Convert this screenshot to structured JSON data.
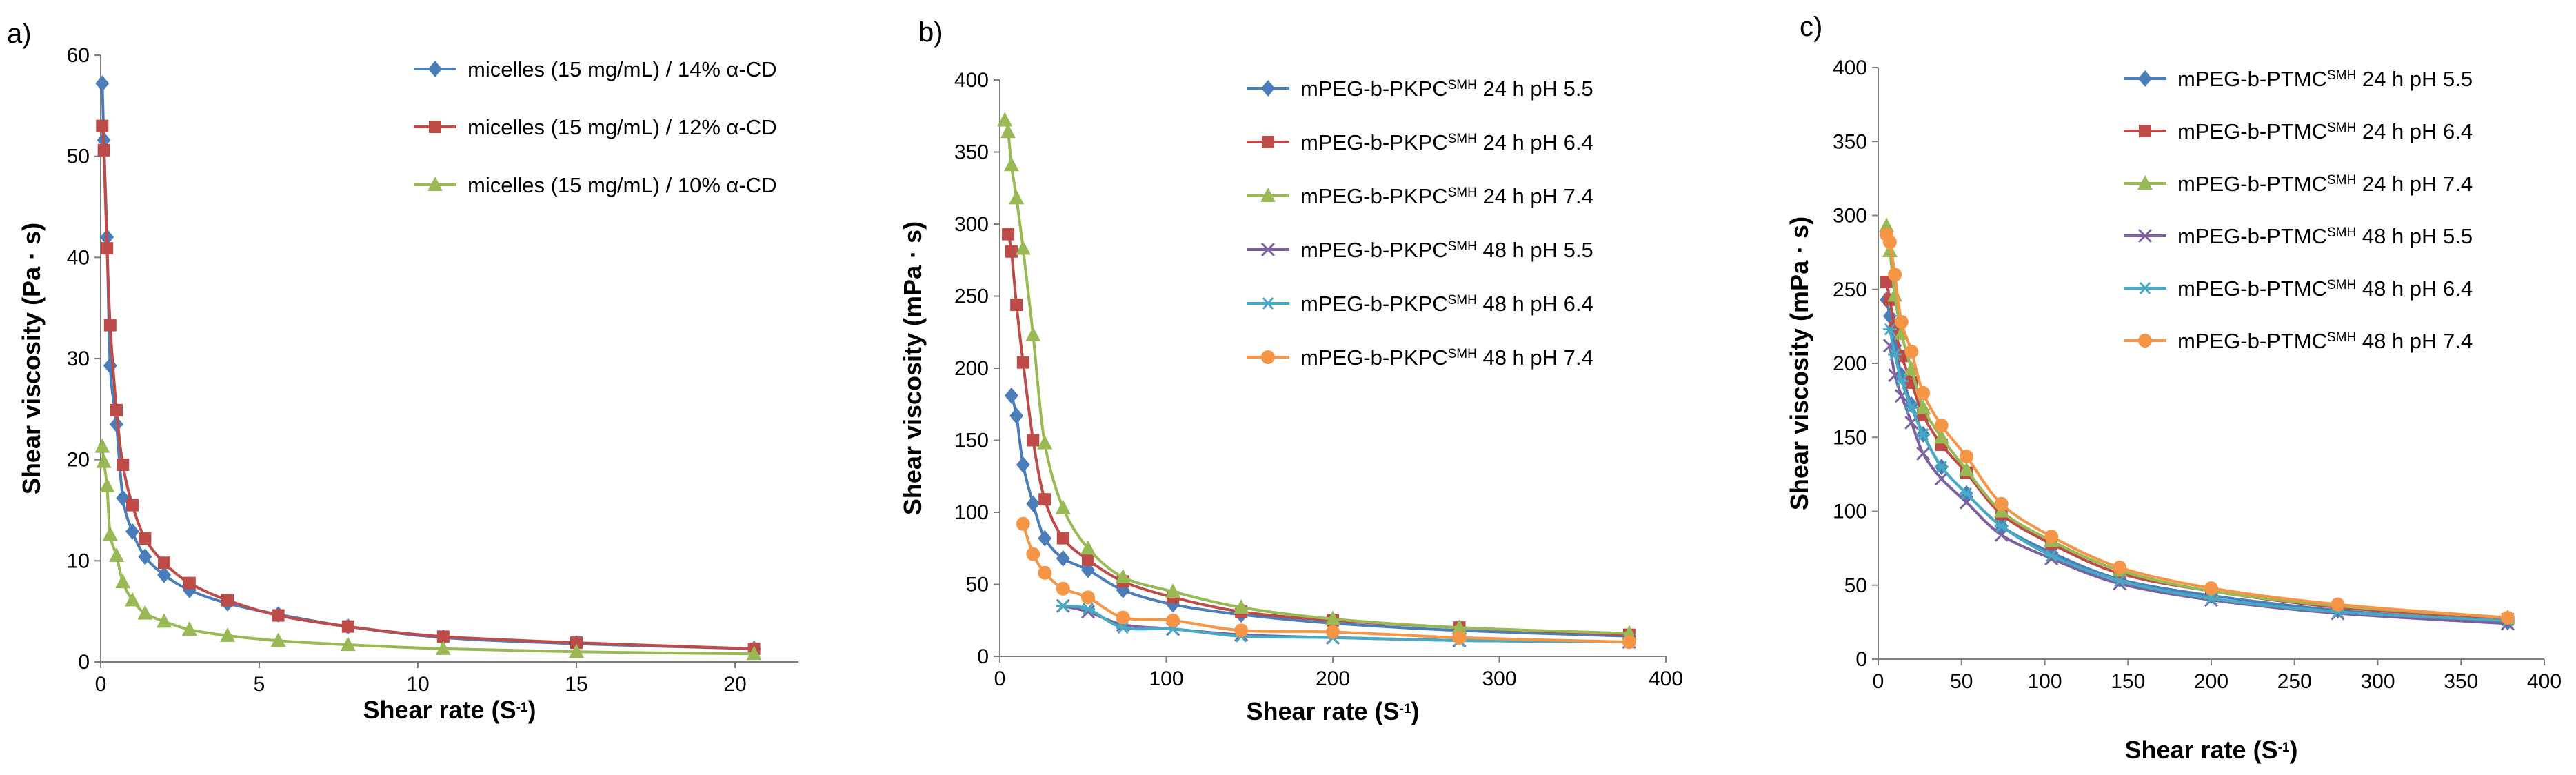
{
  "chart_data": [
    {
      "panel_label": "a)",
      "type": "line",
      "xlabel_main": "Shear rate (S",
      "xlabel_sup": "-1",
      "xlabel_end": ")",
      "ylabel": "Shear viscosity (Pa · s)",
      "xlim": [
        0,
        22
      ],
      "ylim": [
        0,
        60
      ],
      "xticks": [
        0,
        5,
        10,
        15,
        20
      ],
      "yticks": [
        0,
        10,
        20,
        30,
        40,
        50,
        60
      ],
      "legend_position": "top-right",
      "series": [
        {
          "name": "micelles (15 mg/mL) / 14% α-CD",
          "color": "#4a7ebb",
          "marker": "diamond",
          "x": [
            0.05,
            0.1,
            0.2,
            0.3,
            0.5,
            0.7,
            1.0,
            1.4,
            2.0,
            2.8,
            4.0,
            5.6,
            7.8,
            10.8,
            15.0,
            20.6
          ],
          "y": [
            57.2,
            51.6,
            42.0,
            29.3,
            23.5,
            16.2,
            12.9,
            10.4,
            8.6,
            7.1,
            5.8,
            4.7,
            3.5,
            2.4,
            1.8,
            1.3
          ]
        },
        {
          "name": "micelles (15 mg/mL) / 12% α-CD",
          "color": "#be4b48",
          "marker": "square",
          "x": [
            0.05,
            0.1,
            0.2,
            0.3,
            0.5,
            0.7,
            1.0,
            1.4,
            2.0,
            2.8,
            4.0,
            5.6,
            7.8,
            10.8,
            15.0,
            20.6
          ],
          "y": [
            53.0,
            50.6,
            40.9,
            33.3,
            24.9,
            19.5,
            15.5,
            12.2,
            9.8,
            7.8,
            6.1,
            4.6,
            3.5,
            2.5,
            1.9,
            1.3
          ]
        },
        {
          "name": "micelles (15 mg/mL) / 10% α-CD",
          "color": "#98b954",
          "marker": "triangle",
          "x": [
            0.05,
            0.1,
            0.2,
            0.3,
            0.5,
            0.7,
            1.0,
            1.4,
            2.0,
            2.8,
            4.0,
            5.6,
            7.8,
            10.8,
            15.0,
            20.6
          ],
          "y": [
            21.3,
            19.8,
            17.4,
            12.6,
            10.5,
            7.9,
            6.1,
            4.8,
            4.0,
            3.2,
            2.6,
            2.1,
            1.7,
            1.3,
            1.0,
            0.8
          ]
        }
      ]
    },
    {
      "panel_label": "b)",
      "type": "line",
      "xlabel_main": "Shear rate (S",
      "xlabel_sup": "-1",
      "xlabel_end": ")",
      "ylabel": "Shear viscosity (mPa · s)",
      "xlim": [
        0,
        400
      ],
      "ylim": [
        0,
        400
      ],
      "xticks": [
        0,
        100,
        200,
        300,
        400
      ],
      "yticks": [
        0,
        50,
        100,
        150,
        200,
        250,
        300,
        350,
        400
      ],
      "legend_position": "top-right",
      "series": [
        {
          "name_main": "mPEG-b-PKPC",
          "name_sup": "SMH",
          "name_end": " 24 h pH 5.5",
          "color": "#4a7ebb",
          "marker": "diamond",
          "x": [
            7,
            10,
            14,
            20,
            27,
            38,
            53,
            74,
            104,
            145,
            200,
            276,
            378
          ],
          "y": [
            181,
            167,
            133,
            106,
            82,
            68,
            60,
            46,
            36,
            29,
            23,
            18,
            14
          ]
        },
        {
          "name_main": "mPEG-b-PKPC",
          "name_sup": "SMH",
          "name_end": " 24 h pH 6.4",
          "color": "#be4b48",
          "marker": "square",
          "x": [
            5,
            7,
            10,
            14,
            20,
            27,
            38,
            53,
            74,
            104,
            145,
            200,
            276,
            378
          ],
          "y": [
            293,
            281,
            244,
            204,
            150,
            109,
            82,
            67,
            52,
            41,
            31,
            25,
            20,
            15
          ]
        },
        {
          "name_main": "mPEG-b-PKPC",
          "name_sup": "SMH",
          "name_end": " 24 h pH 7.4",
          "color": "#98b954",
          "marker": "triangle",
          "x": [
            3,
            5,
            7,
            10,
            14,
            20,
            27,
            38,
            53,
            74,
            104,
            145,
            200,
            276,
            378
          ],
          "y": [
            372,
            364,
            341,
            318,
            283,
            223,
            148,
            103,
            75,
            55,
            45,
            34,
            26,
            20,
            16
          ]
        },
        {
          "name_main": "mPEG-b-PKPC",
          "name_sup": "SMH",
          "name_end": " 48 h pH 5.5",
          "color": "#7d60a0",
          "marker": "x",
          "x": [
            38,
            53,
            74,
            104,
            145,
            200,
            276,
            378
          ],
          "y": [
            35,
            31,
            22,
            19,
            15,
            13,
            11,
            10
          ]
        },
        {
          "name_main": "mPEG-b-PKPC",
          "name_sup": "SMH",
          "name_end": " 48 h pH 6.4",
          "color": "#46aac5",
          "marker": "star",
          "x": [
            38,
            53,
            74,
            104,
            145,
            200,
            276,
            378
          ],
          "y": [
            35,
            33,
            20,
            19,
            14,
            13,
            11,
            10
          ]
        },
        {
          "name_main": "mPEG-b-PKPC",
          "name_sup": "SMH",
          "name_end": " 48 h pH 7.4",
          "color": "#f69546",
          "marker": "circle",
          "x": [
            14,
            20,
            27,
            38,
            53,
            74,
            104,
            145,
            200,
            276,
            378
          ],
          "y": [
            92,
            71,
            58,
            47,
            41,
            27,
            25,
            18,
            17,
            13,
            10
          ]
        }
      ]
    },
    {
      "panel_label": "c)",
      "type": "line",
      "xlabel_main": "Shear rate (S",
      "xlabel_sup": "-1",
      "xlabel_end": ")",
      "ylabel": "Shear viscosity (mPa · s)",
      "xlim": [
        0,
        400
      ],
      "ylim": [
        0,
        400
      ],
      "xticks": [
        0,
        50,
        100,
        150,
        200,
        250,
        300,
        350,
        400
      ],
      "yticks": [
        0,
        50,
        100,
        150,
        200,
        250,
        300,
        350,
        400
      ],
      "legend_position": "top-right",
      "series": [
        {
          "name_main": "mPEG-b-PTMC",
          "name_sup": "SMH",
          "name_end": " 24 h pH 5.5",
          "color": "#4a7ebb",
          "marker": "diamond",
          "x": [
            5,
            7,
            10,
            14,
            20,
            27,
            38,
            53,
            74,
            104,
            145,
            200,
            276,
            378
          ],
          "y": [
            243,
            232,
            212,
            192,
            172,
            152,
            130,
            112,
            90,
            72,
            54,
            43,
            33,
            25
          ]
        },
        {
          "name_main": "mPEG-b-PTMC",
          "name_sup": "SMH",
          "name_end": " 24 h pH 6.4",
          "color": "#be4b48",
          "marker": "square",
          "x": [
            5,
            7,
            10,
            14,
            20,
            27,
            38,
            53,
            74,
            104,
            145,
            200,
            276,
            378
          ],
          "y": [
            255,
            243,
            224,
            205,
            187,
            165,
            145,
            126,
            98,
            78,
            58,
            46,
            35,
            27
          ]
        },
        {
          "name_main": "mPEG-b-PTMC",
          "name_sup": "SMH",
          "name_end": " 24 h pH 7.4",
          "color": "#98b954",
          "marker": "triangle",
          "x": [
            5,
            7,
            10,
            14,
            20,
            27,
            38,
            53,
            74,
            104,
            145,
            200,
            276,
            378
          ],
          "y": [
            293,
            276,
            246,
            220,
            196,
            170,
            150,
            128,
            100,
            80,
            60,
            46,
            36,
            28
          ]
        },
        {
          "name_main": "mPEG-b-PTMC",
          "name_sup": "SMH",
          "name_end": " 48 h pH 5.5",
          "color": "#7d60a0",
          "marker": "x",
          "x": [
            7,
            10,
            14,
            20,
            27,
            38,
            53,
            74,
            104,
            145,
            200,
            276,
            378
          ],
          "y": [
            212,
            192,
            178,
            160,
            139,
            122,
            106,
            84,
            68,
            51,
            40,
            31,
            24
          ]
        },
        {
          "name_main": "mPEG-b-PTMC",
          "name_sup": "SMH",
          "name_end": " 48 h pH 6.4",
          "color": "#46aac5",
          "marker": "star",
          "x": [
            7,
            10,
            14,
            20,
            27,
            38,
            53,
            74,
            104,
            145,
            200,
            276,
            378
          ],
          "y": [
            223,
            206,
            188,
            170,
            152,
            130,
            112,
            90,
            70,
            53,
            41,
            32,
            26
          ]
        },
        {
          "name_main": "mPEG-b-PTMC",
          "name_sup": "SMH",
          "name_end": " 48 h pH 7.4",
          "color": "#f69546",
          "marker": "circle",
          "x": [
            5,
            7,
            10,
            14,
            20,
            27,
            38,
            53,
            74,
            104,
            145,
            200,
            276,
            378
          ],
          "y": [
            287,
            282,
            260,
            228,
            208,
            180,
            158,
            137,
            105,
            83,
            62,
            48,
            37,
            28
          ]
        }
      ]
    }
  ]
}
